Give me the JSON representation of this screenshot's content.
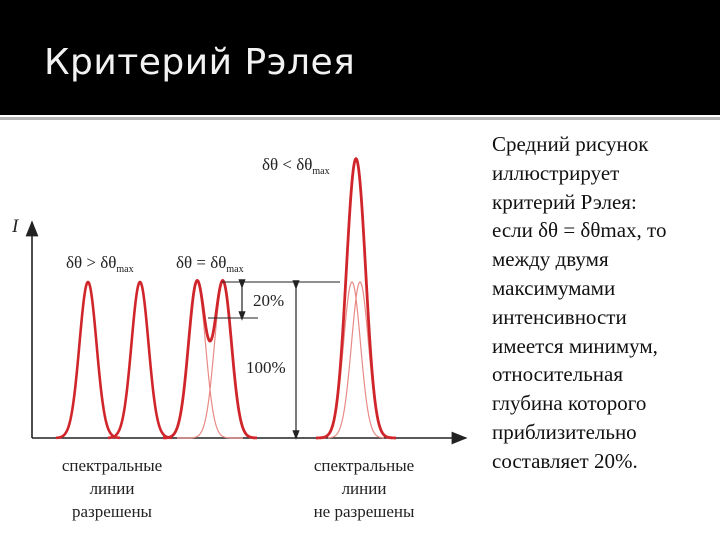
{
  "slide": {
    "title": "Критерий Рэлея",
    "text_lines": [
      "Средний рисунок",
      "иллюстрирует",
      "критерий Рэлея:",
      "если δθ = δθmax, то",
      "между двумя",
      "максимумами",
      "интенсивности",
      "имеется минимум,",
      "относительная",
      "глубина которого",
      "приблизительно",
      "составляет 20%."
    ]
  },
  "diagram": {
    "y_axis_label": "I",
    "case_left": {
      "main": "δθ > δθ",
      "sub": "max"
    },
    "case_middle": {
      "main": "δθ = δθ",
      "sub": "max"
    },
    "case_right": {
      "main": "δθ < δθ",
      "sub": "max"
    },
    "dip_label": "20%",
    "height_label": "100%",
    "caption_left": [
      "спектральные",
      "линии",
      "разрешены"
    ],
    "caption_right": [
      "спектральные",
      "линии",
      "не разрешены"
    ]
  },
  "colors": {
    "title_bar": "#000000",
    "curve": "#d0262b",
    "curve_light": "#e88a86",
    "axis": "#222222"
  }
}
